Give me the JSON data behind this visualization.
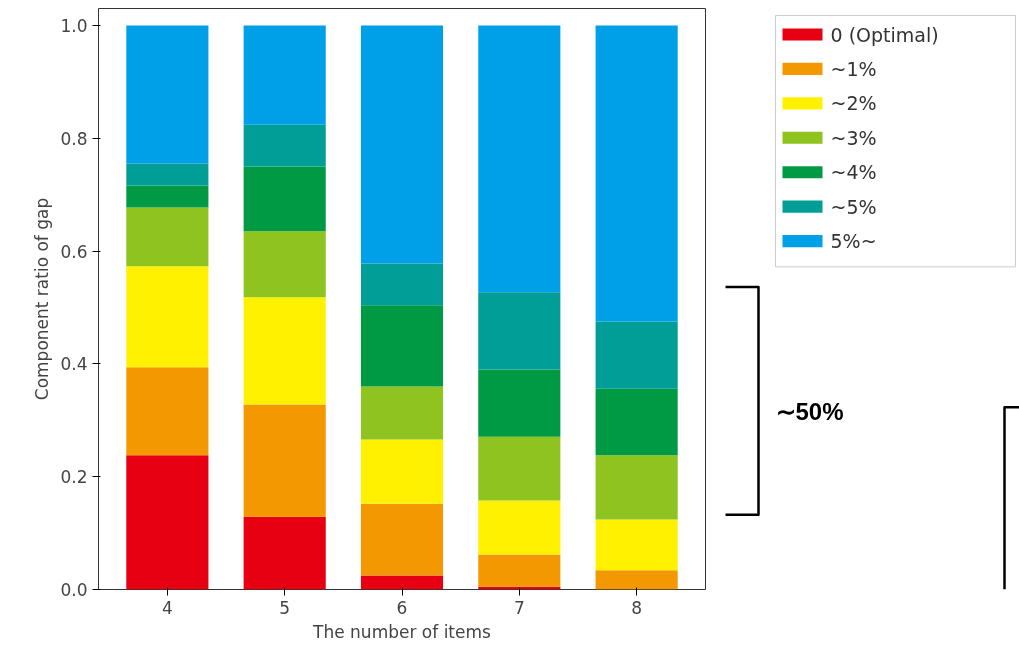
{
  "chart_data": {
    "type": "bar",
    "stacked": true,
    "xlabel": "The number of items",
    "ylabel": "Component ratio of gap",
    "categories": [
      "4",
      "5",
      "6",
      "7",
      "8"
    ],
    "series": [
      {
        "name": "0 (Optimal)",
        "color": "#e60012",
        "values": [
          0.238,
          0.129,
          0.025,
          0.005,
          0
        ]
      },
      {
        "name": "~1%",
        "color": "#f39800",
        "values": [
          0.156,
          0.199,
          0.127,
          0.057,
          0.034
        ]
      },
      {
        "name": "~2%",
        "color": "#fff100",
        "values": [
          0.179,
          0.19,
          0.114,
          0.096,
          0.09
        ]
      },
      {
        "name": "~3%",
        "color": "#8fc31f",
        "values": [
          0.104,
          0.117,
          0.094,
          0.113,
          0.114
        ]
      },
      {
        "name": "~4%",
        "color": "#009944",
        "values": [
          0.039,
          0.115,
          0.144,
          0.119,
          0.118
        ]
      },
      {
        "name": "~5%",
        "color": "#009e96",
        "values": [
          0.039,
          0.074,
          0.074,
          0.137,
          0.119
        ]
      },
      {
        "name": "5%~",
        "color": "#00a0e9",
        "values": [
          0.245,
          0.176,
          0.422,
          0.473,
          0.525
        ]
      }
    ],
    "ylim": [
      0,
      1.03
    ],
    "yticks": [
      {
        "value": 0,
        "label": "0.0"
      },
      {
        "value": 0.2,
        "label": "0.2"
      },
      {
        "value": 0.4,
        "label": "0.4"
      },
      {
        "value": 0.6,
        "label": "0.6"
      },
      {
        "value": 0.8,
        "label": "0.8"
      },
      {
        "value": 1,
        "label": "1.0"
      }
    ],
    "grid": false,
    "legend": "top right",
    "annotations": [
      "∼50%"
    ]
  }
}
